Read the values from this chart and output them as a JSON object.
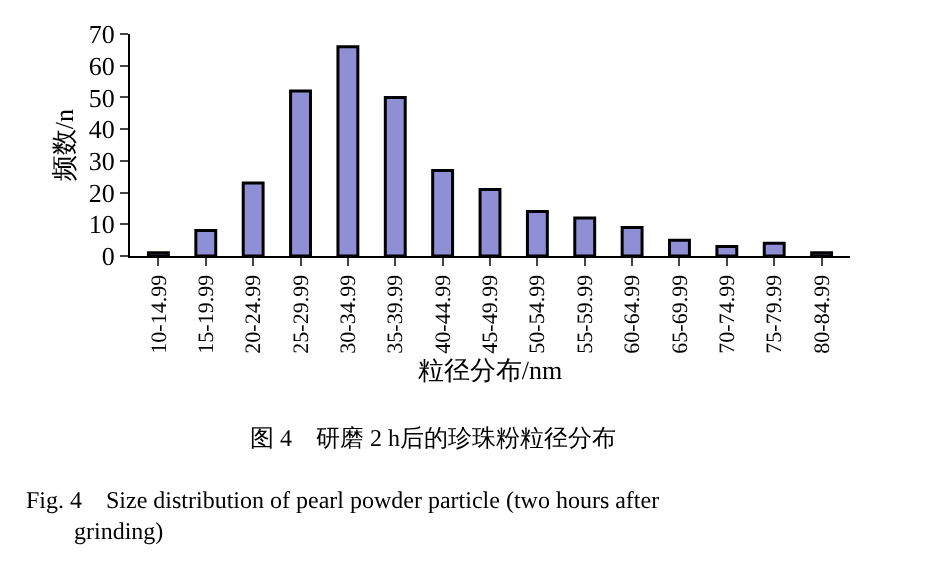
{
  "chart_data": {
    "type": "bar",
    "xlabel": "粒径分布/nm",
    "ylabel": "频数/n",
    "categories": [
      "10-14.99",
      "15-19.99",
      "20-24.99",
      "25-29.99",
      "30-34.99",
      "35-39.99",
      "40-44.99",
      "45-49.99",
      "50-54.99",
      "55-59.99",
      "60-64.99",
      "65-69.99",
      "70-74.99",
      "75-79.99",
      "80-84.99"
    ],
    "values": [
      1,
      8,
      23,
      52,
      66,
      50,
      27,
      21,
      14,
      12,
      9,
      5,
      3,
      4,
      1
    ],
    "color": "#8f8fd6",
    "ylim": [
      0,
      70
    ],
    "yticks": [
      0,
      10,
      20,
      30,
      40,
      50,
      60,
      70
    ],
    "annotations": [
      "图 4　研磨 2 h后的珍珠粉粒径分布",
      "Fig. 4　Size distribution of pearl powder particle (two hours after grinding)"
    ]
  }
}
